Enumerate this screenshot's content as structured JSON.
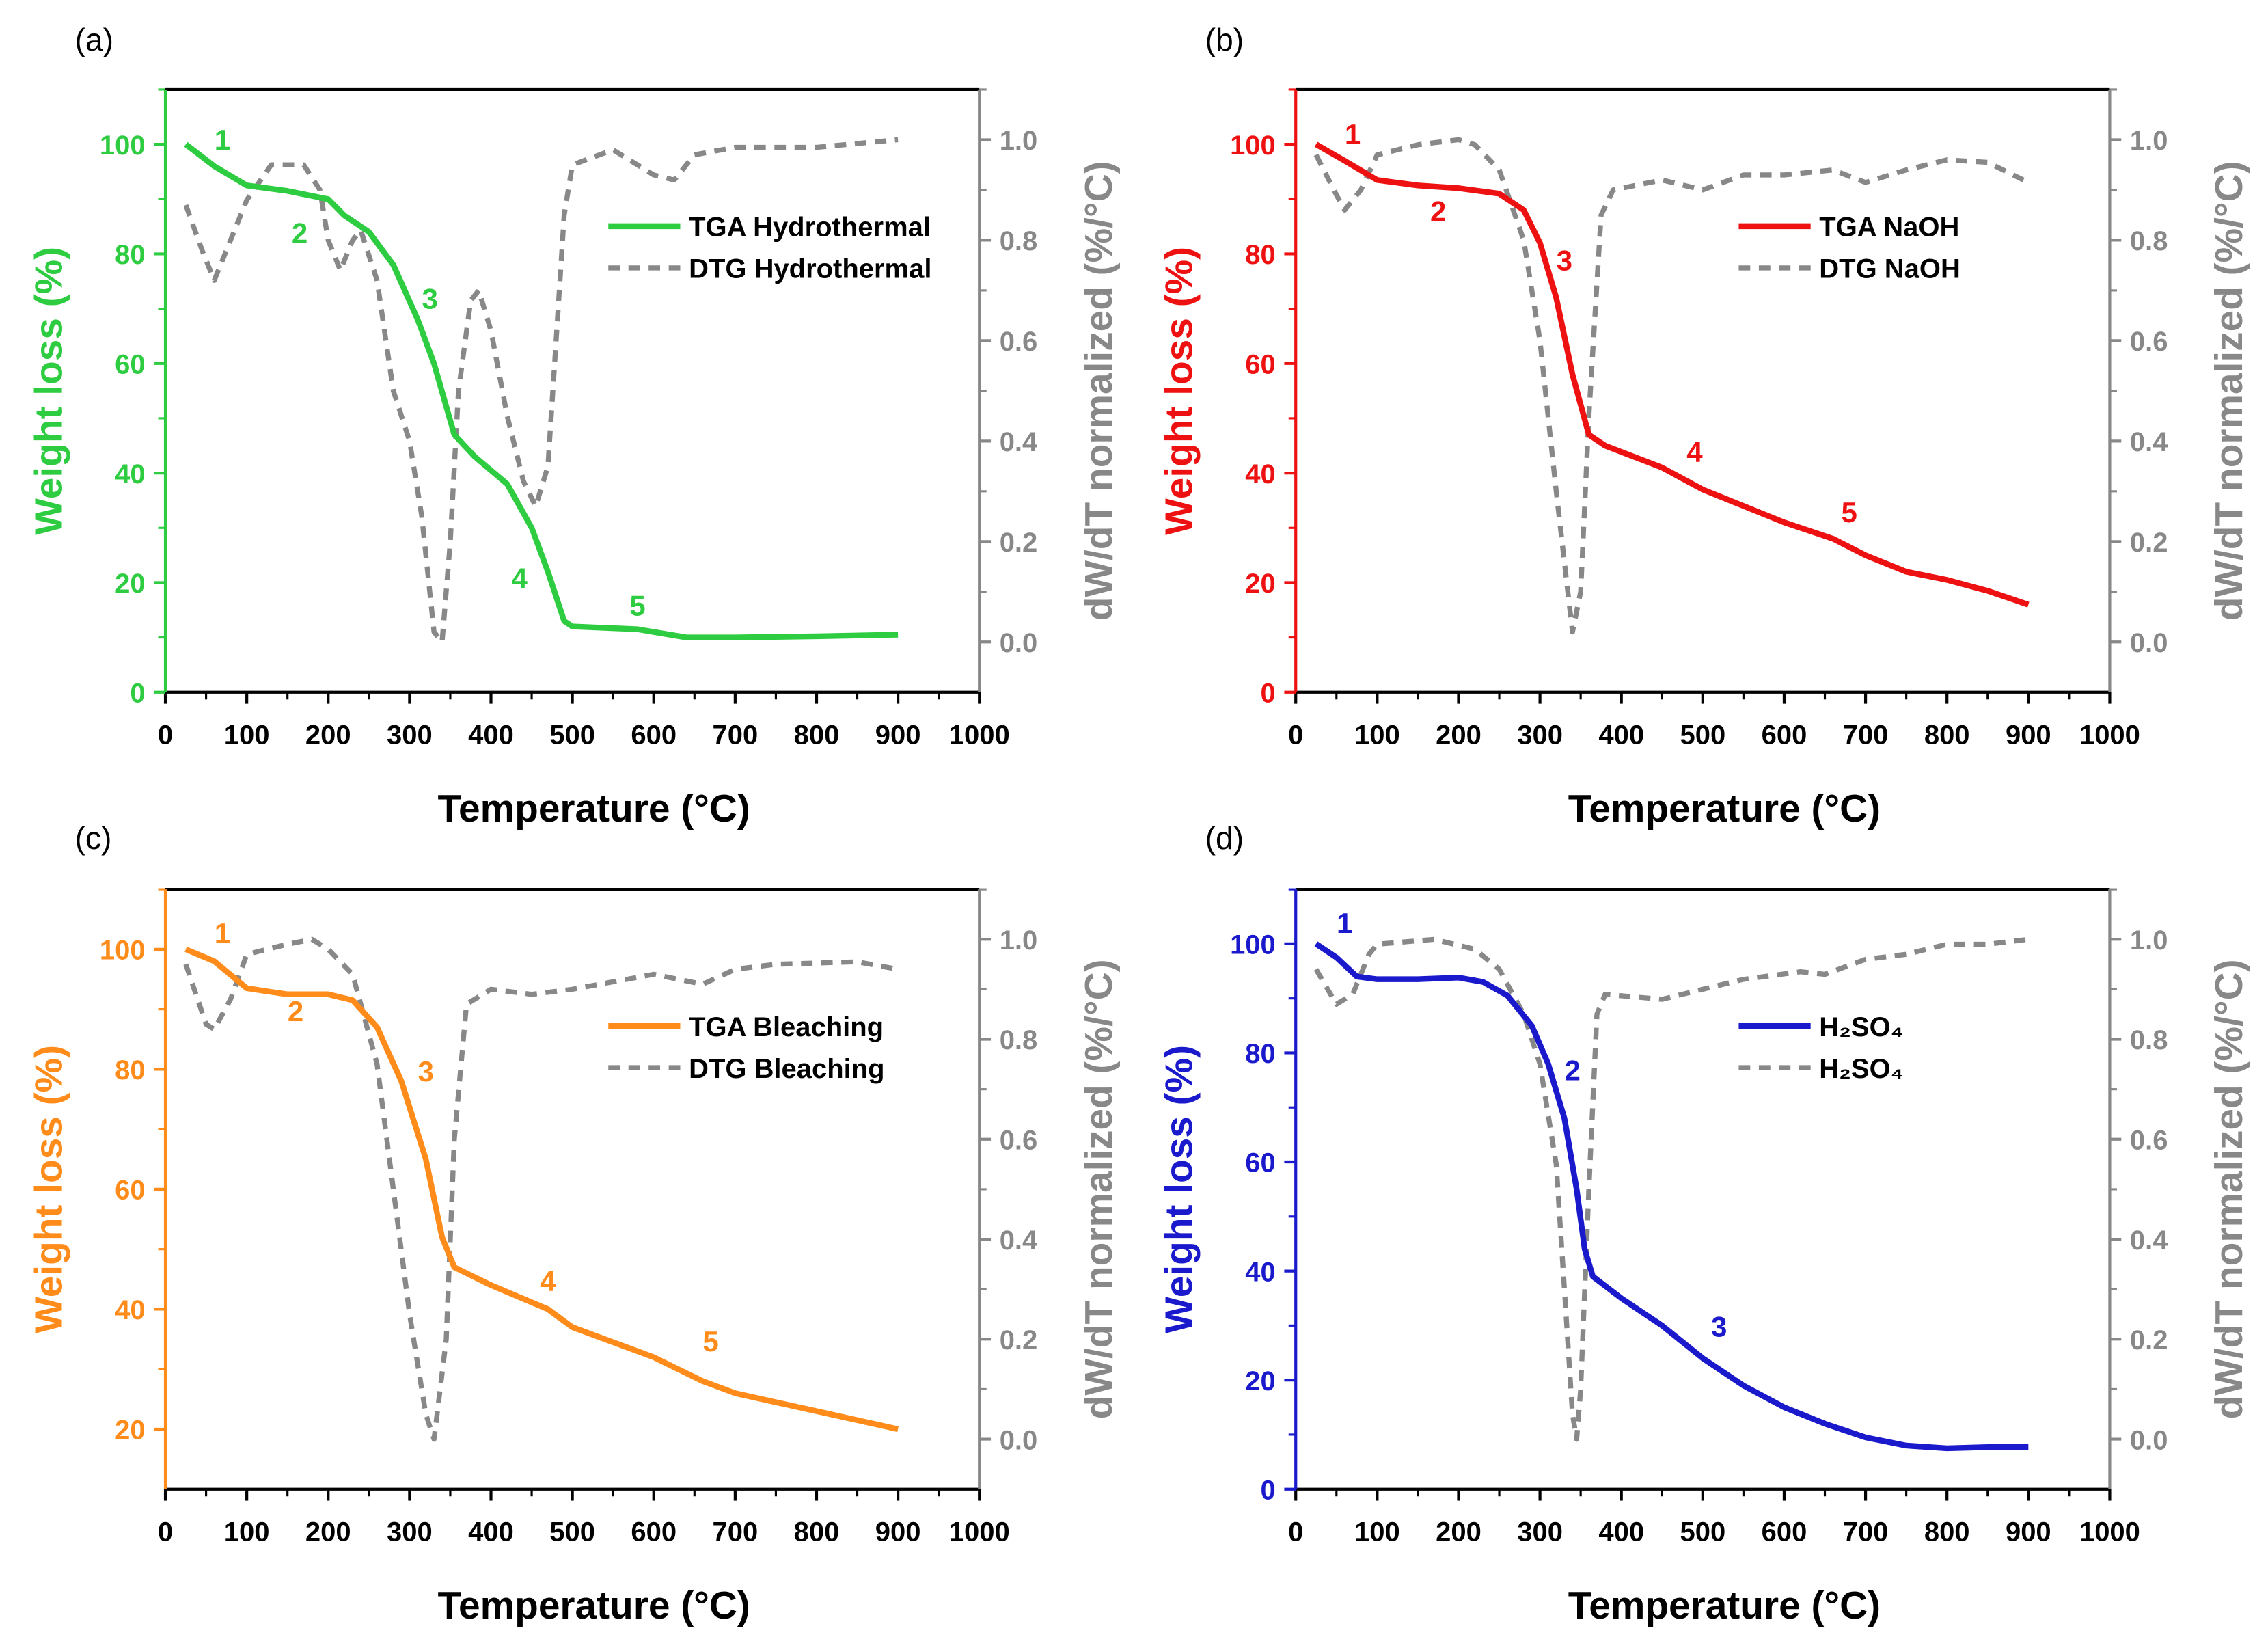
{
  "chart_data": [
    {
      "panel": "(a)",
      "type": "line",
      "color": "#2ecc40",
      "xlabel": "Temperature (°C)",
      "ylabel": "Weight loss (%)",
      "y2label": "dW/dT normalized (%/°C)",
      "xlim": [
        0,
        1000
      ],
      "ylim": [
        0,
        110
      ],
      "y2lim": [
        -0.1,
        1.1
      ],
      "xticks": [
        0,
        100,
        200,
        300,
        400,
        500,
        600,
        700,
        800,
        900,
        1000
      ],
      "yticks": [
        0,
        20,
        40,
        60,
        80,
        100
      ],
      "y2ticks": [
        "0.0",
        "0.2",
        "0.4",
        "0.6",
        "0.8",
        "1.0"
      ],
      "legend": [
        "TGA Hydrothermal",
        "DTG Hydrothermal"
      ],
      "legend_pos": "top-right",
      "tga": {
        "x": [
          25,
          60,
          100,
          150,
          200,
          220,
          250,
          280,
          310,
          330,
          355,
          380,
          420,
          450,
          470,
          490,
          500,
          580,
          600,
          640,
          700,
          800,
          900
        ],
        "y": [
          100,
          96,
          92.5,
          91.5,
          90,
          87,
          84,
          78,
          68,
          60,
          47,
          43,
          38,
          30,
          22,
          13,
          12,
          11.5,
          11,
          10,
          10,
          10.2,
          10.5
        ]
      },
      "dtg": {
        "x": [
          25,
          45,
          60,
          80,
          100,
          130,
          150,
          170,
          190,
          200,
          215,
          230,
          240,
          260,
          280,
          300,
          315,
          330,
          340,
          350,
          360,
          375,
          385,
          400,
          420,
          440,
          455,
          470,
          480,
          490,
          500,
          550,
          600,
          625,
          650,
          700,
          800,
          900
        ],
        "y": [
          0.87,
          0.78,
          0.72,
          0.8,
          0.88,
          0.95,
          0.95,
          0.95,
          0.9,
          0.8,
          0.74,
          0.8,
          0.82,
          0.72,
          0.5,
          0.4,
          0.25,
          0.02,
          0.0,
          0.2,
          0.5,
          0.68,
          0.7,
          0.62,
          0.45,
          0.32,
          0.27,
          0.35,
          0.6,
          0.85,
          0.95,
          0.98,
          0.93,
          0.92,
          0.97,
          0.985,
          0.985,
          1.0
        ]
      },
      "annotations": [
        {
          "t": "1",
          "x": 70,
          "y": 99
        },
        {
          "t": "2",
          "x": 165,
          "y": 82
        },
        {
          "t": "3",
          "x": 325,
          "y": 70
        },
        {
          "t": "4",
          "x": 435,
          "y": 19
        },
        {
          "t": "5",
          "x": 580,
          "y": 14
        }
      ]
    },
    {
      "panel": "(b)",
      "type": "line",
      "color": "#ee1111",
      "xlabel": "Temperature (°C)",
      "ylabel": "Weight loss (%)",
      "y2label": "dW/dT normalized (%/°C)",
      "xlim": [
        0,
        1000
      ],
      "ylim": [
        0,
        110
      ],
      "y2lim": [
        -0.1,
        1.1
      ],
      "xticks": [
        0,
        100,
        200,
        300,
        400,
        500,
        600,
        700,
        800,
        900,
        1000
      ],
      "yticks": [
        0,
        20,
        40,
        60,
        80,
        100
      ],
      "y2ticks": [
        "0.0",
        "0.2",
        "0.4",
        "0.6",
        "0.8",
        "1.0"
      ],
      "legend": [
        "TGA NaOH",
        "DTG NaOH"
      ],
      "legend_pos": "top-right",
      "tga": {
        "x": [
          25,
          60,
          100,
          150,
          200,
          250,
          280,
          300,
          320,
          340,
          360,
          380,
          450,
          500,
          550,
          600,
          660,
          700,
          750,
          800,
          850,
          900
        ],
        "y": [
          100,
          97,
          93.5,
          92.5,
          92,
          91,
          88,
          82,
          72,
          58,
          47,
          45,
          41,
          37,
          34,
          31,
          28,
          25,
          22,
          20.5,
          18.5,
          16
        ]
      },
      "dtg": {
        "x": [
          25,
          50,
          60,
          80,
          100,
          150,
          200,
          220,
          250,
          280,
          300,
          320,
          340,
          350,
          360,
          375,
          390,
          450,
          500,
          550,
          600,
          660,
          700,
          750,
          800,
          850,
          900
        ],
        "y": [
          0.97,
          0.89,
          0.86,
          0.9,
          0.97,
          0.99,
          1.0,
          0.99,
          0.94,
          0.8,
          0.6,
          0.3,
          0.02,
          0.1,
          0.45,
          0.85,
          0.9,
          0.92,
          0.9,
          0.93,
          0.93,
          0.94,
          0.915,
          0.94,
          0.96,
          0.955,
          0.915
        ]
      },
      "annotations": [
        {
          "t": "1",
          "x": 70,
          "y": 100
        },
        {
          "t": "2",
          "x": 175,
          "y": 86
        },
        {
          "t": "3",
          "x": 330,
          "y": 77
        },
        {
          "t": "4",
          "x": 490,
          "y": 42
        },
        {
          "t": "5",
          "x": 680,
          "y": 31
        }
      ]
    },
    {
      "panel": "(c)",
      "type": "line",
      "color": "#ff8c1a",
      "xlabel": "Temperature (°C)",
      "ylabel": "Weight loss (%)",
      "y2label": "dW/dT normalized (%/°C)",
      "xlim": [
        0,
        1000
      ],
      "ylim": [
        10,
        110
      ],
      "y2lim": [
        -0.1,
        1.1
      ],
      "xticks": [
        0,
        100,
        200,
        300,
        400,
        500,
        600,
        700,
        800,
        900,
        1000
      ],
      "yticks": [
        20,
        40,
        60,
        80,
        100
      ],
      "y2ticks": [
        "0.0",
        "0.2",
        "0.4",
        "0.6",
        "0.8",
        "1.0"
      ],
      "legend": [
        "TGA Bleaching",
        "DTG Bleaching"
      ],
      "legend_pos": "top-right",
      "tga": {
        "x": [
          25,
          60,
          100,
          150,
          200,
          230,
          260,
          290,
          320,
          340,
          355,
          400,
          470,
          500,
          600,
          660,
          700,
          800,
          900
        ],
        "y": [
          100,
          98,
          93.5,
          92.5,
          92.5,
          91.5,
          87,
          78,
          65,
          52,
          47,
          44,
          40,
          37,
          32,
          28,
          26,
          23,
          20
        ]
      },
      "dtg": {
        "x": [
          25,
          50,
          60,
          80,
          100,
          150,
          180,
          200,
          230,
          260,
          280,
          300,
          320,
          330,
          345,
          355,
          370,
          400,
          450,
          500,
          600,
          660,
          700,
          750,
          850,
          900
        ],
        "y": [
          0.95,
          0.83,
          0.82,
          0.88,
          0.97,
          0.99,
          1.0,
          0.98,
          0.93,
          0.75,
          0.5,
          0.25,
          0.05,
          0.0,
          0.2,
          0.6,
          0.87,
          0.9,
          0.89,
          0.9,
          0.93,
          0.91,
          0.94,
          0.95,
          0.955,
          0.94
        ]
      },
      "annotations": [
        {
          "t": "1",
          "x": 70,
          "y": 101
        },
        {
          "t": "2",
          "x": 160,
          "y": 88
        },
        {
          "t": "3",
          "x": 320,
          "y": 78
        },
        {
          "t": "4",
          "x": 470,
          "y": 43
        },
        {
          "t": "5",
          "x": 670,
          "y": 33
        }
      ]
    },
    {
      "panel": "(d)",
      "type": "line",
      "color": "#1a1acc",
      "xlabel": "Temperature (°C)",
      "ylabel": "Weight loss (%)",
      "y2label": "dW/dT normalized (%/°C)",
      "xlim": [
        0,
        1000
      ],
      "ylim": [
        0,
        110
      ],
      "y2lim": [
        -0.1,
        1.1
      ],
      "xticks": [
        0,
        100,
        200,
        300,
        400,
        500,
        600,
        700,
        800,
        900,
        1000
      ],
      "yticks": [
        0,
        20,
        40,
        60,
        80,
        100
      ],
      "y2ticks": [
        "0.0",
        "0.2",
        "0.4",
        "0.6",
        "0.8",
        "1.0"
      ],
      "legend": [
        "H₂SO₄",
        "H₂SO₄"
      ],
      "legend_pos": "top-right",
      "tga": {
        "x": [
          25,
          50,
          75,
          100,
          150,
          200,
          230,
          260,
          290,
          310,
          330,
          345,
          355,
          365,
          400,
          450,
          500,
          550,
          600,
          650,
          700,
          750,
          800,
          850,
          900
        ],
        "y": [
          100,
          97.5,
          94,
          93.5,
          93.5,
          93.8,
          93,
          90.5,
          85,
          78,
          68,
          55,
          44,
          39,
          35,
          30,
          24,
          19,
          15,
          12,
          9.5,
          8,
          7.5,
          7.7,
          7.7
        ]
      },
      "dtg": {
        "x": [
          25,
          50,
          70,
          90,
          100,
          170,
          220,
          250,
          280,
          300,
          320,
          330,
          340,
          345,
          350,
          360,
          370,
          380,
          450,
          500,
          550,
          620,
          650,
          700,
          750,
          800,
          850,
          900
        ],
        "y": [
          0.94,
          0.87,
          0.89,
          0.97,
          0.99,
          1.0,
          0.98,
          0.94,
          0.85,
          0.75,
          0.55,
          0.3,
          0.05,
          0.0,
          0.1,
          0.5,
          0.85,
          0.89,
          0.88,
          0.9,
          0.92,
          0.935,
          0.93,
          0.96,
          0.97,
          0.99,
          0.99,
          1.0
        ]
      },
      "annotations": [
        {
          "t": "1",
          "x": 60,
          "y": 102
        },
        {
          "t": "2",
          "x": 340,
          "y": 75
        },
        {
          "t": "3",
          "x": 520,
          "y": 28
        }
      ]
    }
  ],
  "colors": {
    "dtg": "#888888",
    "axis_right": "#888888"
  }
}
